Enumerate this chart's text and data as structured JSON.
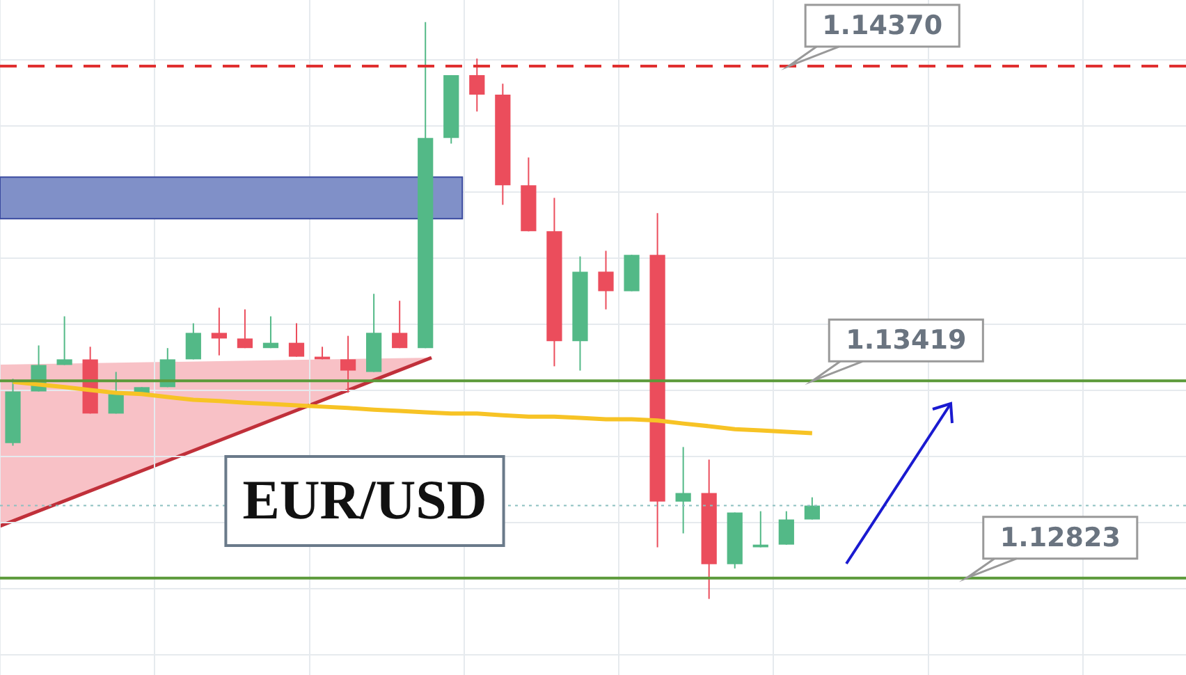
{
  "chart_data": {
    "type": "candlestick",
    "categories": [
      null,
      null,
      null,
      null,
      null,
      null,
      null,
      null,
      null,
      null,
      null,
      null,
      null,
      null,
      null,
      null,
      null,
      null,
      null,
      null,
      null,
      null,
      null,
      null,
      null,
      null,
      null,
      null,
      null,
      null,
      null,
      null,
      null,
      null,
      null,
      null,
      null,
      null,
      null,
      null,
      null,
      null,
      null,
      null,
      null,
      null
    ],
    "ohlc": [
      [
        1.13231,
        1.13425,
        1.13223,
        1.13387
      ],
      [
        1.13387,
        1.13526,
        1.13387,
        1.13467
      ],
      [
        1.13467,
        1.13614,
        1.13467,
        1.13484
      ],
      [
        1.13484,
        1.13522,
        1.1332,
        1.1332
      ],
      [
        1.1332,
        1.13446,
        1.1332,
        1.13379
      ],
      [
        1.13379,
        1.134,
        1.13379,
        1.134
      ],
      [
        1.134,
        1.13518,
        1.134,
        1.13484
      ],
      [
        1.13484,
        1.13593,
        1.13484,
        1.13564
      ],
      [
        1.13564,
        1.1364,
        1.13496,
        1.13547
      ],
      [
        1.13547,
        1.13635,
        1.13518,
        1.13518
      ],
      [
        1.13518,
        1.13614,
        1.13518,
        1.13534
      ],
      [
        1.13534,
        1.13593,
        1.13492,
        1.13492
      ],
      [
        1.13492,
        1.13522,
        1.13484,
        1.13484
      ],
      [
        1.13484,
        1.13555,
        1.13383,
        1.1345
      ],
      [
        1.13446,
        1.13682,
        1.13446,
        1.13564
      ],
      [
        1.13564,
        1.13661,
        1.13518,
        1.13518
      ],
      [
        1.13518,
        1.14503,
        1.13518,
        1.14153
      ],
      [
        1.14153,
        1.14343,
        1.14136,
        1.14343
      ],
      [
        1.14343,
        1.14393,
        1.14233,
        1.14284
      ],
      [
        1.14284,
        1.14317,
        1.13951,
        1.1401
      ],
      [
        1.1401,
        1.14094,
        1.13871,
        1.13871
      ],
      [
        1.13871,
        1.13972,
        1.13463,
        1.13539
      ],
      [
        1.13539,
        1.13795,
        1.1345,
        1.13749
      ],
      [
        1.13749,
        1.13812,
        1.13635,
        1.1369
      ],
      [
        1.1369,
        1.138,
        1.1369,
        1.138
      ],
      [
        1.138,
        1.13926,
        1.12916,
        1.13054
      ],
      [
        1.13054,
        1.13219,
        1.12958,
        1.1308
      ],
      [
        1.1308,
        1.13181,
        1.1276,
        1.12865
      ],
      [
        1.12865,
        1.13021,
        1.12852,
        1.13021
      ],
      [
        1.12916,
        1.13025,
        1.12916,
        1.12924
      ],
      [
        1.12924,
        1.13025,
        1.12924,
        1.13
      ],
      [
        1.13,
        1.13067,
        1.13,
        1.13042
      ],
      null,
      null,
      null,
      null,
      null,
      null,
      null,
      null,
      null,
      null,
      null,
      null,
      null,
      null
    ],
    "series": [
      {
        "type": "line",
        "color": "#f7c325",
        "values": [
          1.13416,
          1.13408,
          1.134,
          1.13391,
          1.13383,
          1.13379,
          1.1337,
          1.13362,
          1.13358,
          1.13353,
          1.13349,
          1.13345,
          1.13341,
          1.13337,
          1.13332,
          1.13328,
          1.13324,
          1.1332,
          1.1332,
          1.13315,
          1.13311,
          1.13311,
          1.13307,
          1.13303,
          1.13303,
          1.13299,
          1.1329,
          1.13282,
          1.13273,
          1.13269,
          1.13265,
          1.13261,
          null,
          null,
          null,
          null,
          null,
          null,
          null,
          null,
          null,
          null,
          null,
          null,
          null,
          null
        ]
      }
    ],
    "ylim": [
      1.1253,
      1.1457
    ],
    "yticks": [
      {
        "value": 1.1259,
        "label": null
      },
      {
        "value": 1.1279,
        "label": null
      },
      {
        "value": 1.1299,
        "label": null
      },
      {
        "value": 1.1319,
        "label": null
      },
      {
        "value": 1.1339,
        "label": null
      },
      {
        "value": 1.1359,
        "label": null
      },
      {
        "value": 1.1379,
        "label": null
      },
      {
        "value": 1.1399,
        "label": null
      },
      {
        "value": 1.1419,
        "label": null
      },
      {
        "value": 1.1439,
        "label": null
      }
    ],
    "grid": true,
    "legend": false,
    "ref_lines": [
      {
        "axis": "y",
        "value": 1.1437,
        "label": "1.14370",
        "color": "#e03030",
        "line_style": "dashed"
      },
      {
        "axis": "y",
        "value": 1.13419,
        "label": "1.13419",
        "color": "#5c9a3a",
        "line_style": "solid"
      },
      {
        "axis": "y",
        "value": 1.12823,
        "label": "1.12823",
        "color": "#5c9a3a",
        "line_style": "solid"
      },
      {
        "axis": "y",
        "value": 1.13042,
        "color": "#8cc0c0",
        "line_style": "dotted"
      }
    ],
    "bands": [
      {
        "axis": "y",
        "from": 1.13909,
        "to": 1.14035,
        "color": "#8090c8"
      }
    ],
    "annotations": [
      "EUR/USD"
    ]
  }
}
